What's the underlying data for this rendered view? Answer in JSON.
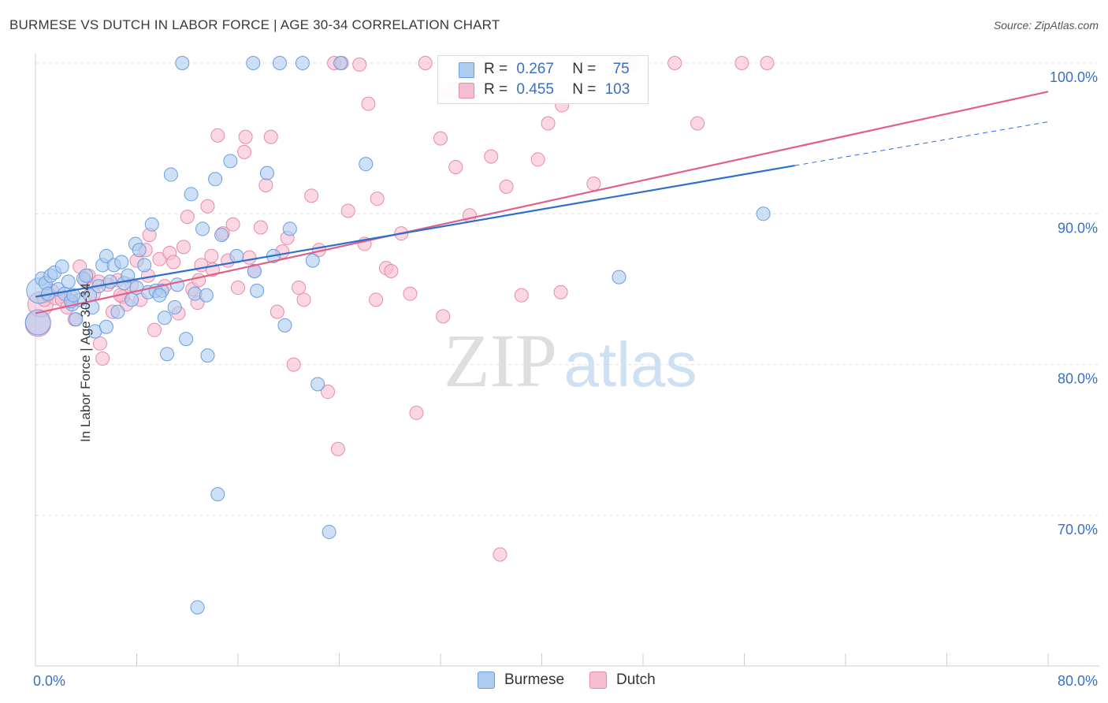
{
  "title": "BURMESE VS DUTCH IN LABOR FORCE | AGE 30-34 CORRELATION CHART",
  "source": "Source: ZipAtlas.com",
  "watermark": {
    "zip": "ZIP",
    "atlas": "atlas"
  },
  "legend": {
    "burmese": {
      "r_label": "R =",
      "r_value": "0.267",
      "n_label": "N =",
      "n_value": "75"
    },
    "dutch": {
      "r_label": "R =",
      "r_value": "0.455",
      "n_label": "N =",
      "n_value": "103"
    }
  },
  "bottom_legend": {
    "burmese": "Burmese",
    "dutch": "Dutch"
  },
  "colors": {
    "burmese_fill": "#aecbf0",
    "burmese_stroke": "#6a9ee0",
    "burmese_line": "#2d6fcc",
    "dutch_fill": "#f6bcd0",
    "dutch_stroke": "#e88aab",
    "dutch_line": "#e0608a",
    "tick_label": "#3a6fc4",
    "grid": "#e0e0e0"
  },
  "chart_data": {
    "type": "scatter",
    "ylabel": "In Labor Force | Age 30-34",
    "xlim": [
      0,
      80
    ],
    "ylim": [
      60,
      102
    ],
    "x_tick_labels": [
      {
        "v": 0,
        "t": "0.0%"
      },
      {
        "v": 80,
        "t": "80.0%"
      }
    ],
    "y_tick_labels": [
      {
        "v": 100,
        "t": "100.0%"
      },
      {
        "v": 90,
        "t": "90.0%"
      },
      {
        "v": 80,
        "t": "80.0%"
      },
      {
        "v": 70,
        "t": "70.0%"
      }
    ],
    "series": [
      {
        "name": "Burmese",
        "trend": {
          "x": [
            0,
            60
          ],
          "y": [
            84.5,
            93.2
          ],
          "dashed_to": [
            80,
            96.1
          ]
        },
        "points": [
          [
            0.2,
            82.8
          ],
          [
            0.3,
            84.9
          ],
          [
            0.5,
            85.7
          ],
          [
            0.8,
            85.4
          ],
          [
            1.0,
            84.7
          ],
          [
            1.2,
            85.9
          ],
          [
            1.5,
            86.1
          ],
          [
            1.8,
            85.0
          ],
          [
            2.1,
            86.5
          ],
          [
            2.3,
            84.7
          ],
          [
            2.6,
            85.5
          ],
          [
            2.9,
            84.0
          ],
          [
            3.2,
            83.0
          ],
          [
            3.5,
            84.3
          ],
          [
            3.8,
            85.7
          ],
          [
            4.0,
            85.9
          ],
          [
            4.3,
            84.6
          ],
          [
            4.7,
            82.2
          ],
          [
            5.0,
            85.2
          ],
          [
            5.3,
            86.6
          ],
          [
            5.6,
            87.2
          ],
          [
            5.9,
            85.5
          ],
          [
            6.2,
            86.6
          ],
          [
            6.5,
            83.5
          ],
          [
            7.0,
            85.4
          ],
          [
            7.3,
            85.9
          ],
          [
            7.6,
            84.3
          ],
          [
            7.9,
            88.0
          ],
          [
            8.2,
            87.6
          ],
          [
            8.6,
            86.6
          ],
          [
            8.9,
            84.8
          ],
          [
            9.2,
            89.3
          ],
          [
            9.5,
            84.9
          ],
          [
            10.0,
            84.9
          ],
          [
            10.2,
            83.1
          ],
          [
            10.4,
            80.7
          ],
          [
            10.7,
            92.6
          ],
          [
            11.2,
            85.3
          ],
          [
            11.6,
            100.0
          ],
          [
            11.9,
            81.7
          ],
          [
            12.3,
            91.3
          ],
          [
            12.6,
            84.7
          ],
          [
            13.2,
            89.0
          ],
          [
            13.5,
            84.6
          ],
          [
            14.2,
            92.3
          ],
          [
            14.7,
            88.6
          ],
          [
            15.4,
            93.5
          ],
          [
            15.9,
            87.2
          ],
          [
            17.3,
            86.2
          ],
          [
            17.5,
            84.9
          ],
          [
            18.3,
            92.7
          ],
          [
            18.8,
            87.2
          ],
          [
            19.7,
            82.6
          ],
          [
            20.1,
            89.0
          ],
          [
            21.1,
            100.0
          ],
          [
            21.9,
            86.9
          ],
          [
            22.3,
            78.7
          ],
          [
            23.2,
            68.9
          ],
          [
            24.1,
            100.0
          ],
          [
            26.1,
            93.3
          ],
          [
            12.8,
            63.9
          ],
          [
            14.4,
            71.4
          ],
          [
            13.6,
            80.6
          ],
          [
            17.2,
            100.0
          ],
          [
            19.3,
            100.0
          ],
          [
            46.1,
            85.8
          ],
          [
            57.5,
            90.0
          ],
          [
            5.6,
            82.5
          ],
          [
            6.8,
            86.8
          ],
          [
            9.8,
            84.6
          ],
          [
            2.8,
            84.2
          ],
          [
            4.5,
            83.8
          ],
          [
            8.0,
            85.1
          ],
          [
            11.0,
            83.8
          ],
          [
            3.0,
            84.6
          ]
        ]
      },
      {
        "name": "Dutch",
        "trend": {
          "x": [
            0,
            80
          ],
          "y": [
            83.4,
            98.1
          ]
        },
        "points": [
          [
            0.2,
            82.7
          ],
          [
            0.4,
            84.0
          ],
          [
            0.7,
            84.3
          ],
          [
            1.0,
            84.6
          ],
          [
            1.3,
            84.9
          ],
          [
            1.6,
            84.4
          ],
          [
            2.1,
            84.3
          ],
          [
            2.5,
            83.8
          ],
          [
            2.8,
            84.5
          ],
          [
            3.1,
            83.0
          ],
          [
            3.5,
            86.5
          ],
          [
            3.9,
            85.6
          ],
          [
            4.2,
            85.9
          ],
          [
            4.6,
            84.7
          ],
          [
            5.0,
            85.5
          ],
          [
            5.3,
            80.4
          ],
          [
            5.7,
            85.3
          ],
          [
            6.1,
            83.5
          ],
          [
            6.5,
            85.6
          ],
          [
            6.9,
            84.5
          ],
          [
            7.2,
            84.0
          ],
          [
            7.6,
            85.3
          ],
          [
            8.0,
            86.9
          ],
          [
            8.3,
            84.3
          ],
          [
            8.7,
            87.6
          ],
          [
            9.0,
            88.6
          ],
          [
            9.4,
            82.3
          ],
          [
            9.8,
            87.0
          ],
          [
            10.2,
            85.2
          ],
          [
            10.6,
            87.4
          ],
          [
            10.9,
            86.8
          ],
          [
            11.3,
            83.4
          ],
          [
            11.7,
            87.8
          ],
          [
            12.0,
            89.8
          ],
          [
            12.4,
            85.0
          ],
          [
            12.8,
            84.1
          ],
          [
            13.1,
            86.6
          ],
          [
            13.6,
            90.5
          ],
          [
            14.0,
            86.3
          ],
          [
            14.4,
            95.2
          ],
          [
            14.8,
            88.7
          ],
          [
            15.2,
            86.9
          ],
          [
            15.6,
            89.3
          ],
          [
            16.0,
            85.1
          ],
          [
            16.5,
            94.1
          ],
          [
            16.9,
            87.1
          ],
          [
            17.3,
            86.2
          ],
          [
            17.8,
            89.1
          ],
          [
            18.2,
            91.9
          ],
          [
            18.6,
            95.1
          ],
          [
            19.1,
            83.5
          ],
          [
            19.5,
            87.5
          ],
          [
            19.9,
            88.4
          ],
          [
            20.4,
            80.0
          ],
          [
            21.2,
            84.3
          ],
          [
            21.8,
            91.2
          ],
          [
            22.4,
            87.6
          ],
          [
            23.1,
            78.2
          ],
          [
            23.6,
            100.0
          ],
          [
            24.2,
            100.0
          ],
          [
            24.7,
            90.2
          ],
          [
            25.6,
            99.9
          ],
          [
            26.3,
            97.3
          ],
          [
            27.0,
            91.0
          ],
          [
            27.7,
            86.4
          ],
          [
            28.1,
            86.2
          ],
          [
            28.9,
            88.7
          ],
          [
            29.6,
            84.7
          ],
          [
            30.1,
            76.8
          ],
          [
            30.8,
            100.0
          ],
          [
            32.0,
            95.0
          ],
          [
            32.6,
            98.2
          ],
          [
            33.2,
            93.1
          ],
          [
            34.3,
            89.9
          ],
          [
            35.1,
            100.0
          ],
          [
            36.0,
            93.8
          ],
          [
            37.2,
            91.8
          ],
          [
            38.4,
            84.6
          ],
          [
            39.7,
            93.6
          ],
          [
            40.5,
            96.0
          ],
          [
            41.6,
            97.2
          ],
          [
            43.0,
            100.0
          ],
          [
            44.1,
            92.0
          ],
          [
            46.6,
            100.0
          ],
          [
            47.2,
            100.0
          ],
          [
            50.5,
            100.0
          ],
          [
            52.3,
            96.0
          ],
          [
            55.8,
            100.0
          ],
          [
            57.8,
            100.0
          ],
          [
            5.1,
            81.4
          ],
          [
            6.7,
            84.6
          ],
          [
            16.6,
            95.1
          ],
          [
            23.9,
            74.4
          ],
          [
            26.9,
            84.3
          ],
          [
            32.2,
            83.2
          ],
          [
            36.7,
            67.4
          ],
          [
            41.5,
            84.8
          ],
          [
            8.9,
            85.9
          ],
          [
            13.9,
            87.2
          ],
          [
            12.9,
            85.6
          ],
          [
            26.0,
            88.0
          ],
          [
            46.2,
            99.6
          ],
          [
            20.8,
            85.1
          ]
        ]
      }
    ]
  }
}
